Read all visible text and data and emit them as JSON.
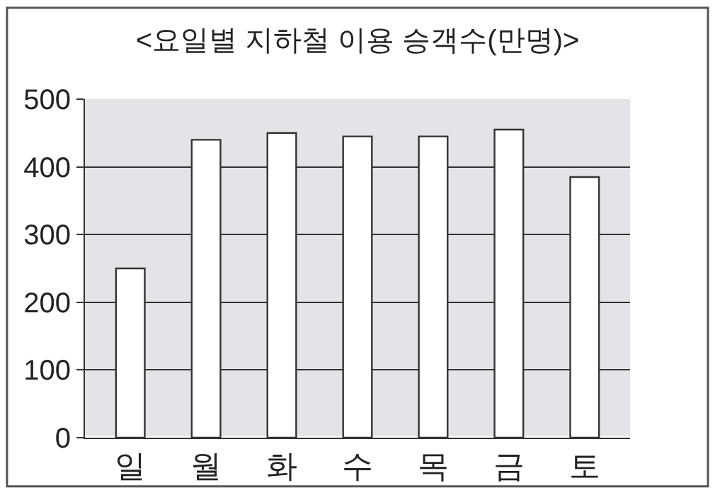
{
  "chart_data": {
    "type": "bar",
    "title": "<요일별 지하철 이용 승객수(만명)>",
    "categories": [
      "일",
      "월",
      "화",
      "수",
      "목",
      "금",
      "토"
    ],
    "values": [
      250,
      440,
      450,
      445,
      445,
      455,
      385
    ],
    "color": "#ffffff",
    "ylim": [
      0,
      500
    ],
    "yticks": [
      0,
      100,
      200,
      300,
      400,
      500
    ],
    "grid": "y"
  }
}
